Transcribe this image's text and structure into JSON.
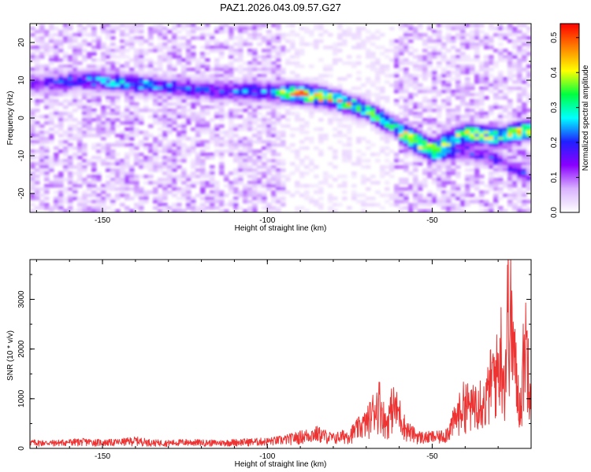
{
  "title": "PAZ1.2026.043.09.57.G27",
  "chart_data": [
    {
      "type": "heatmap",
      "xlabel": "Height of straight line (km)",
      "ylabel": "Frequency (Hz)",
      "xlim": [
        -172,
        -20
      ],
      "ylim": [
        -25,
        25
      ],
      "x_ticks": [
        -150,
        -100,
        -50
      ],
      "x_tick_labels": [
        "-150",
        "-100",
        "-50"
      ],
      "y_ticks": [
        -20,
        -10,
        0,
        10,
        20
      ],
      "y_tick_labels": [
        "-20",
        "-10",
        "0",
        "10",
        "20"
      ],
      "colorbar": {
        "label": "Normalized spectral amplitude",
        "range": [
          0,
          0.54
        ],
        "ticks": [
          0,
          0.1,
          0.2,
          0.3,
          0.4,
          0.5
        ],
        "tick_labels": [
          "0.0",
          "0.1",
          "0.2",
          "0.3",
          "0.4",
          "0.5"
        ],
        "colors": [
          "#ffffff",
          "#d9b3ff",
          "#8a00ff",
          "#2020ff",
          "#00ffff",
          "#00ff40",
          "#ffff00",
          "#ff8000",
          "#ff0000"
        ]
      },
      "ridge": {
        "x": [
          -170,
          -155,
          -140,
          -120,
          -100,
          -90,
          -80,
          -70,
          -60,
          -50,
          -40,
          -30,
          -20
        ],
        "y": [
          9,
          10,
          9,
          7.5,
          7,
          6.5,
          5,
          2,
          -3,
          -8,
          -4,
          -5,
          -3
        ],
        "amplitude": [
          0.15,
          0.22,
          0.25,
          0.18,
          0.22,
          0.45,
          0.42,
          0.33,
          0.3,
          0.32,
          0.4,
          0.35,
          0.45
        ]
      },
      "lower_branch": {
        "x": [
          -60,
          -50,
          -40,
          -30,
          -20
        ],
        "y": [
          -5,
          -10,
          -9,
          -11,
          -16
        ]
      }
    },
    {
      "type": "line",
      "xlabel": "Height of straight line (km)",
      "ylabel": "SNR (10 * v/v)",
      "xlim": [
        -172,
        -20
      ],
      "ylim": [
        0,
        3800
      ],
      "x_ticks": [
        -150,
        -100,
        -50
      ],
      "x_tick_labels": [
        "-150",
        "-100",
        "-50"
      ],
      "y_ticks": [
        0,
        1000,
        2000,
        3000
      ],
      "y_tick_labels": [
        "0",
        "1000",
        "2000",
        "3000"
      ],
      "series": [
        {
          "color": "#ee3333",
          "x": [
            -172,
            -165,
            -160,
            -155,
            -150,
            -145,
            -140,
            -135,
            -130,
            -125,
            -120,
            -115,
            -110,
            -105,
            -100,
            -95,
            -90,
            -85,
            -80,
            -75,
            -72,
            -70,
            -68,
            -66,
            -64,
            -62,
            -60,
            -58,
            -56,
            -54,
            -52,
            -50,
            -48,
            -46,
            -44,
            -42,
            -40,
            -38,
            -36,
            -34,
            -32,
            -30,
            -29,
            -28,
            -27,
            -26,
            -25,
            -24,
            -23,
            -22,
            -21,
            -20
          ],
          "y": [
            150,
            140,
            160,
            170,
            150,
            160,
            200,
            150,
            140,
            160,
            150,
            140,
            160,
            170,
            180,
            220,
            300,
            380,
            260,
            350,
            550,
            650,
            950,
            1200,
            600,
            1100,
            900,
            500,
            380,
            300,
            280,
            300,
            290,
            350,
            600,
            900,
            1200,
            1000,
            1400,
            1100,
            1800,
            2000,
            2600,
            1500,
            3800,
            3200,
            2200,
            1400,
            1100,
            2800,
            2400,
            1800
          ]
        }
      ]
    }
  ]
}
